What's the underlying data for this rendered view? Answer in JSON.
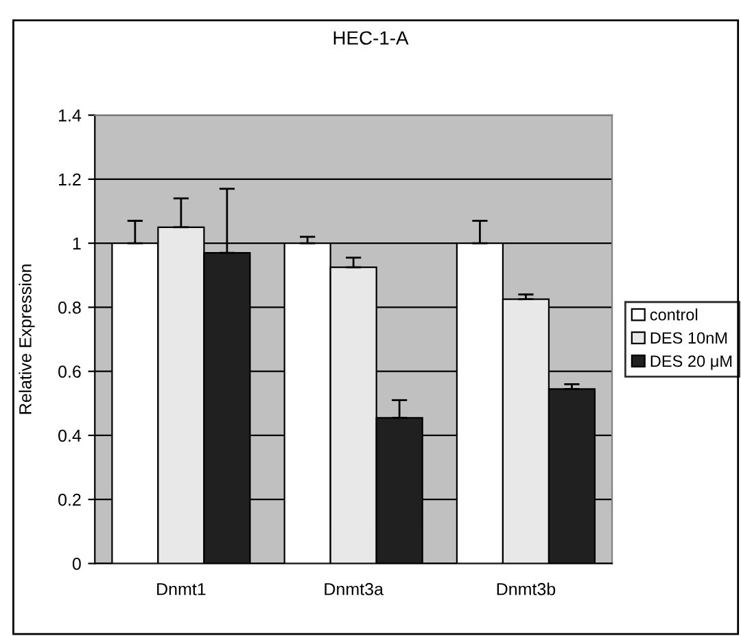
{
  "chart_data": {
    "type": "bar",
    "title": "HEC-1-A",
    "ylabel": "Relative Expression",
    "categories": [
      "Dnmt1",
      "Dnmt3a",
      "Dnmt3b"
    ],
    "series": [
      {
        "name": "control",
        "color": "#ffffff",
        "values": [
          1,
          1,
          1
        ],
        "errors": [
          [
            1,
            1.07
          ],
          [
            1,
            1.02
          ],
          [
            1,
            1.07
          ]
        ]
      },
      {
        "name": "DES 10nM",
        "color": "#e8e8e8",
        "values": [
          1.05,
          0.925,
          0.825
        ],
        "errors": [
          [
            1.05,
            1.14
          ],
          [
            0.925,
            0.955
          ],
          [
            0.825,
            0.84
          ]
        ]
      },
      {
        "name": "DES 20 μM",
        "color": "#202020",
        "values": [
          0.97,
          0.455,
          0.545
        ],
        "errors": [
          [
            0.97,
            1.17
          ],
          [
            0.455,
            0.51
          ],
          [
            0.545,
            0.56
          ]
        ]
      }
    ],
    "ylim": [
      0,
      1.4
    ],
    "yticks": [
      0,
      0.2,
      0.4,
      0.6,
      0.8,
      1,
      1.2,
      1.4
    ],
    "grid": "y",
    "legend": "right"
  }
}
